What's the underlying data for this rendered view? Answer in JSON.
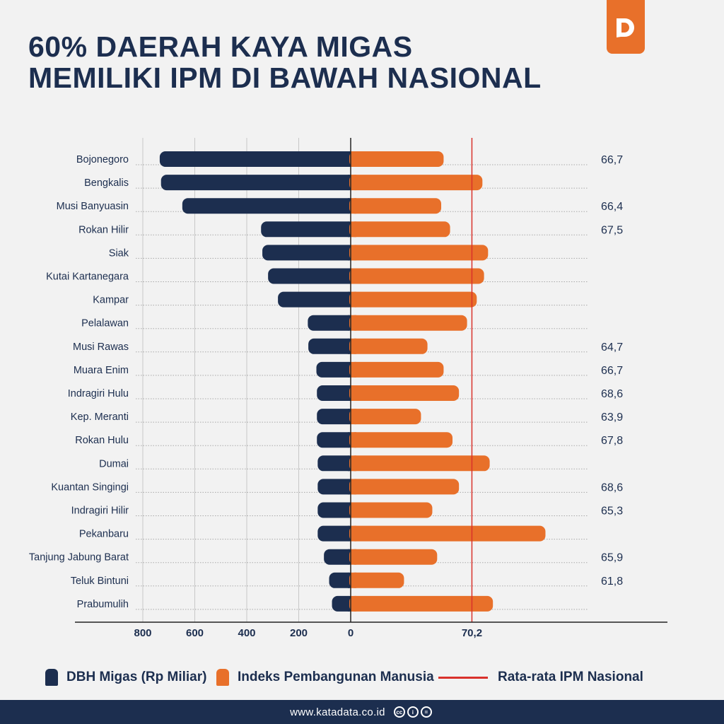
{
  "title_line1": "60% DAERAH KAYA MIGAS",
  "title_line2": "MEMILIKI IPM DI BAWAH NASIONAL",
  "logo_letter": "D",
  "legend": {
    "dbh": "DBH Migas (Rp Miliar)",
    "ipm": "Indeks Pembangunan Manusia",
    "avg": "Rata-rata IPM Nasional"
  },
  "footer": {
    "site": "www.katadata.co.id",
    "cc_icons": [
      "cc-icon",
      "by-icon",
      "nd-icon"
    ]
  },
  "colors": {
    "dbh": "#1c2e4f",
    "ipm": "#e8702a",
    "avg_line": "#d9312b",
    "title": "#1c2e4f",
    "background": "#f2f2f2"
  },
  "chart_data": {
    "type": "bar",
    "orientation": "horizontal-diverging",
    "categories": [
      "Bojonegoro",
      "Bengkalis",
      "Musi Banyuasin",
      "Rokan Hilir",
      "Siak",
      "Kutai Kartanegara",
      "Kampar",
      "Pelalawan",
      "Musi Rawas",
      "Muara Enim",
      "Indragiri Hulu",
      "Kep.  Meranti",
      "Rokan Hulu",
      "Dumai",
      "Kuantan Singingi",
      "Indragiri Hilir",
      "Pekanbaru",
      "Tanjung Jabung Barat",
      "Teluk Bintuni",
      "Prabumulih"
    ],
    "series": [
      {
        "name": "DBH Migas (Rp Miliar)",
        "values": [
          735,
          730,
          648,
          345,
          340,
          318,
          280,
          165,
          163,
          132,
          130,
          130,
          130,
          127,
          127,
          127,
          127,
          103,
          83,
          72
        ]
      },
      {
        "name": "Indeks Pembangunan Manusia",
        "values": [
          66.7,
          71.5,
          66.4,
          67.5,
          72.2,
          71.7,
          70.8,
          69.6,
          64.7,
          66.7,
          68.6,
          63.9,
          67.8,
          72.4,
          68.6,
          65.3,
          79.3,
          65.9,
          61.8,
          72.8
        ]
      }
    ],
    "value_labels": [
      "66,7",
      "",
      "66,4",
      "67,5",
      "",
      "",
      "",
      "",
      "64,7",
      "66,7",
      "68,6",
      "63,9",
      "67,8",
      "",
      "68,6",
      "65,3",
      "",
      "65,9",
      "61,8",
      ""
    ],
    "left_axis": {
      "ticks": [
        "800",
        "600",
        "400",
        "200",
        "0"
      ],
      "range": [
        800,
        0
      ]
    },
    "right_axis": {
      "ticks": [
        "70,2"
      ],
      "reference": 70.2
    },
    "reference_line": {
      "name": "Rata-rata IPM Nasional",
      "value": 70.2
    },
    "gridlines": true
  }
}
